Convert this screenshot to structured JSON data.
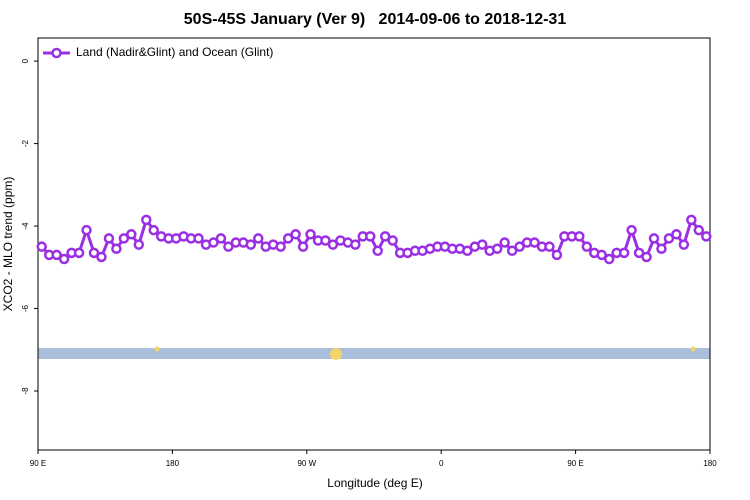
{
  "chart_data": {
    "type": "line",
    "title": "50S-45S January (Ver 9)   2014-09-06 to 2018-12-31",
    "x_label": "Longitude (deg E)",
    "y_label": "XCO2 - MLO trend (ppm)",
    "xlim": [
      90,
      540
    ],
    "ylim": [
      -9.43,
      0.56
    ],
    "xticks": [
      {
        "value": 90,
        "label": "90 E"
      },
      {
        "value": 180,
        "label": "180"
      },
      {
        "value": 270,
        "label": "90 W"
      },
      {
        "value": 360,
        "label": "0"
      },
      {
        "value": 450,
        "label": "90 E"
      },
      {
        "value": 540,
        "label": "180"
      }
    ],
    "yticks": [
      0,
      -2,
      -4,
      -6,
      -8
    ],
    "legend": "top-left",
    "x": [
      92.5,
      97.5,
      102.5,
      107.5,
      112.5,
      117.5,
      122.5,
      127.5,
      132.5,
      137.5,
      142.5,
      147.5,
      152.5,
      157.5,
      162.5,
      167.5,
      172.5,
      177.5,
      182.5,
      187.5,
      192.5,
      197.5,
      202.5,
      207.5,
      212.5,
      217.5,
      222.5,
      227.5,
      232.5,
      237.5,
      242.5,
      247.5,
      252.5,
      257.5,
      262.5,
      267.5,
      272.5,
      277.5,
      282.5,
      287.5,
      292.5,
      297.5,
      302.5,
      307.5,
      312.5,
      317.5,
      322.5,
      327.5,
      332.5,
      337.5,
      342.5,
      347.5,
      352.5,
      357.5,
      362.5,
      367.5,
      372.5,
      377.5,
      382.5,
      387.5,
      392.5,
      397.5,
      402.5,
      407.5,
      412.5,
      417.5,
      422.5,
      427.5,
      432.5,
      437.5,
      442.5,
      447.5,
      452.5,
      457.5,
      462.5,
      467.5,
      472.5,
      477.5,
      482.5,
      487.5,
      492.5,
      497.5,
      502.5,
      507.5,
      512.5,
      517.5,
      522.5,
      527.5,
      532.5,
      537.5
    ],
    "series": [
      {
        "name": "Land (Nadir&Glint) and Ocean (Glint)",
        "color": "#9b2fe3",
        "values": [
          -4.5,
          -4.7,
          -4.7,
          -4.8,
          -4.65,
          -4.65,
          -4.1,
          -4.65,
          -4.75,
          -4.3,
          -4.55,
          -4.3,
          -4.2,
          -4.45,
          -3.85,
          -4.1,
          -4.25,
          -4.3,
          -4.3,
          -4.25,
          -4.3,
          -4.3,
          -4.45,
          -4.4,
          -4.3,
          -4.5,
          -4.4,
          -4.4,
          -4.45,
          -4.3,
          -4.5,
          -4.45,
          -4.5,
          -4.3,
          -4.2,
          -4.5,
          -4.2,
          -4.35,
          -4.35,
          -4.45,
          -4.35,
          -4.4,
          -4.45,
          -4.25,
          -4.25,
          -4.6,
          -4.25,
          -4.35,
          -4.65,
          -4.65,
          -4.6,
          -4.6,
          -4.55,
          -4.5,
          -4.5,
          -4.55,
          -4.55,
          -4.6,
          -4.5,
          -4.45,
          -4.6,
          -4.55,
          -4.4,
          -4.6,
          -4.5,
          -4.4,
          -4.4,
          -4.5,
          -4.5,
          -4.7,
          -4.25,
          -4.25,
          -4.25,
          -4.5,
          -4.65,
          -4.7,
          -4.8,
          -4.65,
          -4.65,
          -4.1,
          -4.65,
          -4.75,
          -4.3,
          -4.55,
          -4.3,
          -4.2,
          -4.45,
          -3.85,
          -4.1,
          -4.25
        ]
      }
    ]
  }
}
